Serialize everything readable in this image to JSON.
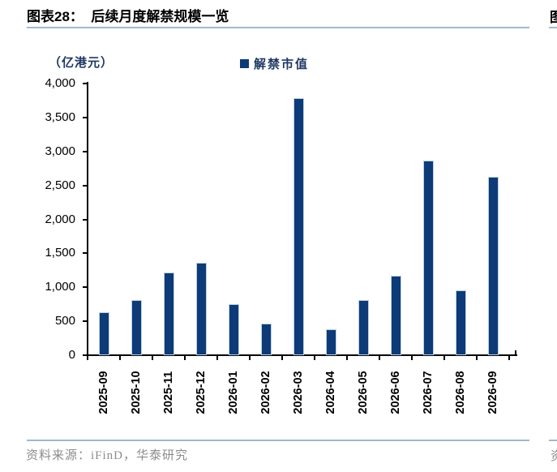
{
  "header": {
    "title": "图表28：  后续月度解禁规模一览",
    "next_chart_partial": "图"
  },
  "chart_data": {
    "type": "bar",
    "title": "后续月度解禁规模一览",
    "unit_label": "（亿港元）",
    "legend": [
      "解禁市值"
    ],
    "legend_position": "top-center",
    "categories": [
      "2025-09",
      "2025-10",
      "2025-11",
      "2025-12",
      "2026-01",
      "2026-02",
      "2026-03",
      "2026-04",
      "2026-05",
      "2026-06",
      "2026-07",
      "2026-08",
      "2026-09"
    ],
    "values": [
      630,
      810,
      1220,
      1360,
      750,
      460,
      3780,
      380,
      810,
      1170,
      2870,
      960,
      2630
    ],
    "xlabel": "",
    "ylabel": "",
    "ylim": [
      0,
      4000
    ],
    "ytick_step": 500,
    "ytick_labels": [
      "0",
      "500",
      "1,000",
      "1,500",
      "2,000",
      "2,500",
      "3,000",
      "3,500",
      "4,000"
    ],
    "grid": false
  },
  "footer": {
    "source": "资料来源：iFinD，华泰研究",
    "next_source_partial": "资"
  },
  "colors": {
    "bar": "#0d3b78",
    "bar_edge": "#bfd0e0",
    "navy_text": "#1f3864",
    "divider": "#a3b8cb",
    "axis": "#000000",
    "muted_text": "#8c8c8c"
  }
}
